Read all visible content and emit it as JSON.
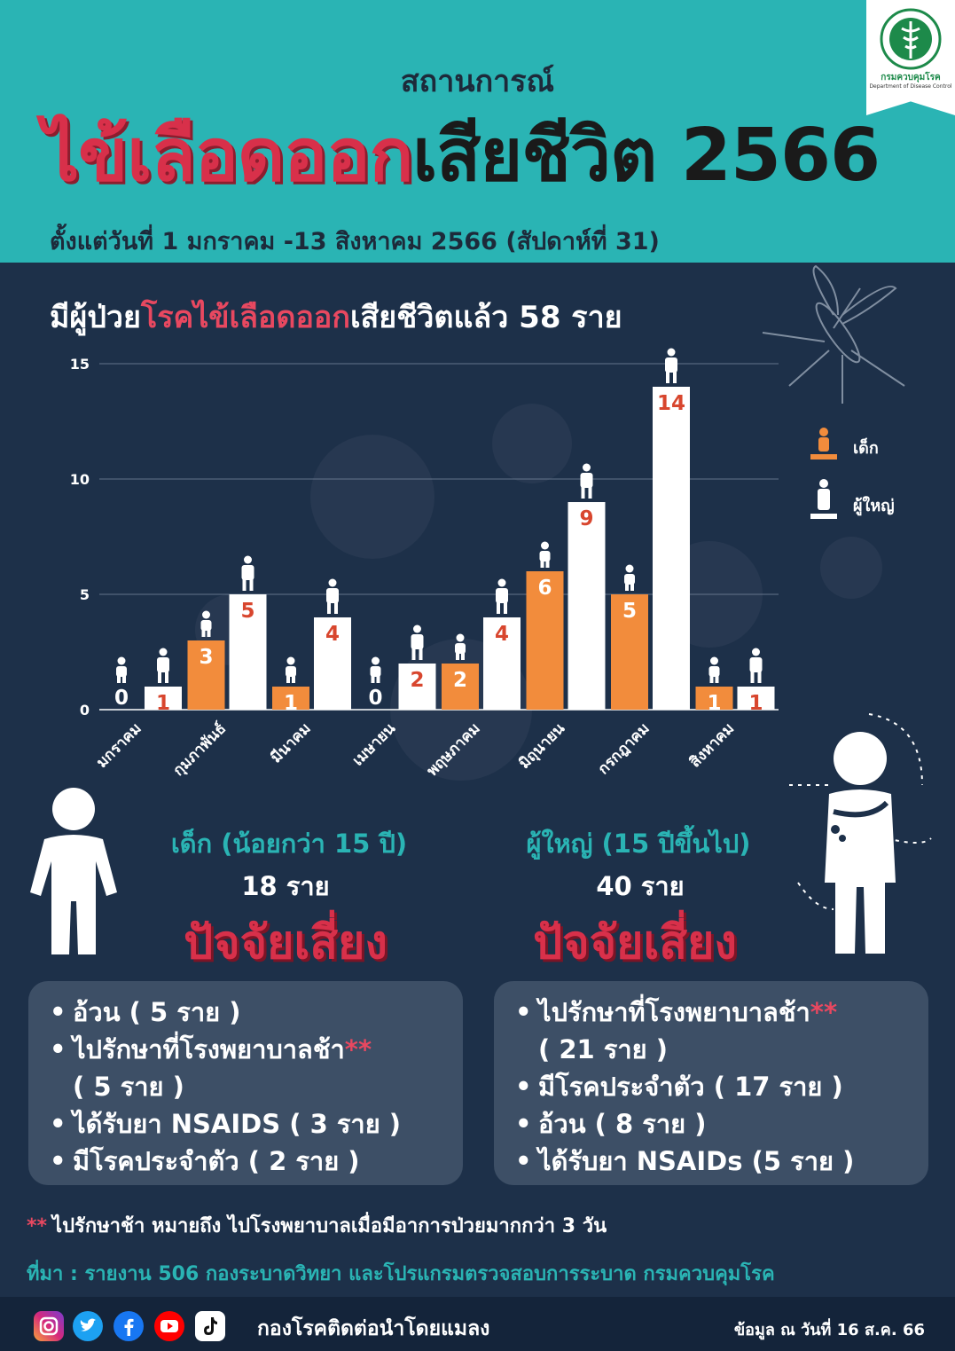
{
  "header": {
    "subtitle": "สถานการณ์",
    "title_red": "ไข้เลือดออก",
    "title_dark": "เสียชีวิต 2566",
    "date_range": "ตั้งแต่วันที่ 1 มกราคม -13 สิงหาคม 2566 (สัปดาห์ที่ 31)"
  },
  "logo": {
    "name": "กรมควบคุมโรค",
    "name_en": "Department of Disease Control"
  },
  "headline": {
    "pre": "มีผู้ป่วย",
    "red": "โรคไข้เลือดออก",
    "post": "เสียชีวิตแล้ว 58 ราย"
  },
  "legend": {
    "child": "เด็ก",
    "adult": "ผู้ใหญ่"
  },
  "colors": {
    "teal": "#2ab4b4",
    "navy": "#1d3049",
    "child_bar": "#f28c3c",
    "adult_bar": "#ffffff",
    "red": "#d8304a"
  },
  "chart_data": {
    "type": "bar",
    "categories": [
      "มกราคม",
      "กุมภาพันธ์",
      "มีนาคม",
      "เมษายน",
      "พฤษภาคม",
      "มิถุนายน",
      "กรกฎาคม",
      "สิงหาคม"
    ],
    "series": [
      {
        "name": "เด็ก",
        "values": [
          0,
          3,
          1,
          0,
          2,
          6,
          5,
          1
        ]
      },
      {
        "name": "ผู้ใหญ่",
        "values": [
          1,
          5,
          4,
          2,
          4,
          9,
          14,
          1
        ]
      }
    ],
    "yticks": [
      0,
      5,
      10,
      15
    ],
    "ylim": [
      0,
      15
    ],
    "grid": true,
    "legend_position": "right"
  },
  "children": {
    "heading": "เด็ก (น้อยกว่า 15 ปี)",
    "count": "18 ราย",
    "risk_title": "ปัจจัยเสี่ยง",
    "risks": [
      {
        "text": "อ้วน ( 5 ราย )"
      },
      {
        "text": "ไปรักษาที่โรงพยาบาลช้า",
        "stars": "**",
        "cont": "( 5 ราย )"
      },
      {
        "text": "ได้รับยา NSAIDS ( 3 ราย )"
      },
      {
        "text": "มีโรคประจำตัว ( 2 ราย )"
      }
    ]
  },
  "adults": {
    "heading": "ผู้ใหญ่ (15 ปีขึ้นไป)",
    "count": "40 ราย",
    "risk_title": "ปัจจัยเสี่ยง",
    "risks": [
      {
        "text": "ไปรักษาที่โรงพยาบาลช้า",
        "stars": "**",
        "cont": "( 21 ราย )"
      },
      {
        "text": "มีโรคประจำตัว ( 17 ราย )"
      },
      {
        "text": "อ้วน ( 8 ราย )"
      },
      {
        "text": "ได้รับยา NSAIDs (5 ราย )"
      }
    ]
  },
  "footnote": {
    "stars": "**",
    "text": "ไปรักษาช้า หมายถึง ไปโรงพยาบาลเมื่อมีอาการป่วยมากกว่า 3 วัน"
  },
  "source": "ที่มา : รายงาน 506 กองระบาดวิทยา และโปรแกรมตรวจสอบการระบาด กรมควบคุมโรค",
  "footer": {
    "organization": "กองโรคติดต่อนำโดยแมลง",
    "updated": "ข้อมูล ณ วันที่ 16 ส.ค. 66",
    "social_icons": [
      "instagram-icon",
      "twitter-icon",
      "facebook-icon",
      "youtube-icon",
      "tiktok-icon"
    ]
  }
}
